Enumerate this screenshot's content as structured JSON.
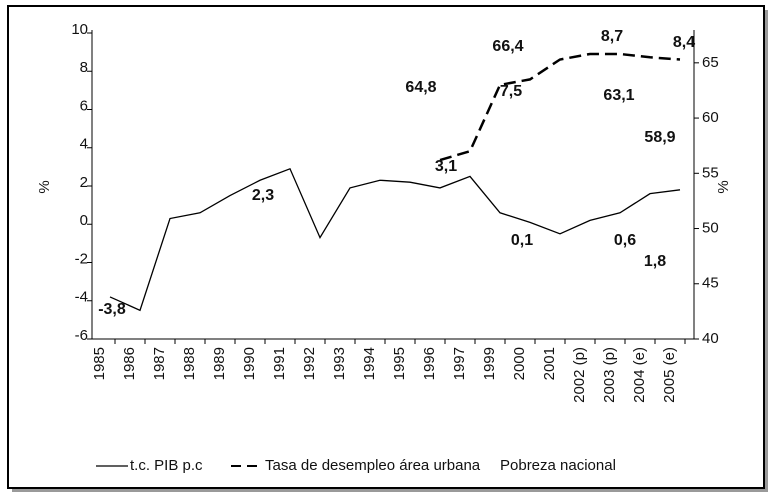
{
  "chart_data": {
    "type": "line",
    "categories": [
      "1985",
      "1986",
      "1987",
      "1988",
      "1989",
      "1990",
      "1991",
      "1992",
      "1993",
      "1994",
      "1995",
      "1996",
      "1997",
      "1999",
      "2000",
      "2001",
      "2002 (p)",
      "2003 (p)",
      "2004 (e)",
      "2005 (e)"
    ],
    "series": [
      {
        "name": "t.c. PIB p.c",
        "color": "#000000",
        "dash": "solid",
        "values": [
          -3.8,
          -4.5,
          0.3,
          0.6,
          1.5,
          2.3,
          2.9,
          -0.7,
          1.9,
          2.3,
          2.2,
          1.9,
          2.5,
          0.6,
          0.1,
          -0.5,
          0.2,
          0.6,
          1.6,
          1.8
        ]
      },
      {
        "name": "Tasa de desempleo área urbana",
        "color": "#000000",
        "dash": "dashed",
        "axis": "y2",
        "values": [
          null,
          null,
          null,
          null,
          null,
          null,
          null,
          null,
          null,
          null,
          null,
          56.2,
          57,
          63,
          63.5,
          65.3,
          65.8,
          65.8,
          65.5,
          65.3
        ]
      }
    ],
    "other_legend_entries": [
      "Pobreza nacional"
    ],
    "annotations": [
      "-3,8",
      "2,3",
      "3,1",
      "64,8",
      "66,4",
      "7,5",
      "8,7",
      "63,1",
      "8,4",
      "58,9",
      "0,1",
      "0,6",
      "1,8"
    ],
    "ylabel": "%",
    "y2label": "%",
    "ylim": [
      -6,
      10
    ],
    "yticks": [
      -6,
      -4,
      -2,
      0,
      2,
      4,
      6,
      8,
      10
    ],
    "y2lim": [
      40,
      67.7
    ],
    "y2ticks": [
      40,
      45,
      50,
      55,
      60,
      65
    ]
  }
}
